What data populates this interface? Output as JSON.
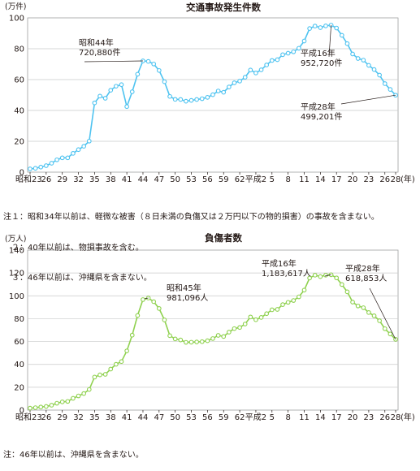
{
  "chart_data": [
    {
      "type": "line",
      "title": "交通事故発生件数",
      "ylabel": "(万件)",
      "xlabel": "(年)",
      "ylim": [
        0,
        100
      ],
      "yticks": [
        0,
        20,
        40,
        60,
        80,
        100
      ],
      "xtick_labels": [
        "昭和23",
        "26",
        "29",
        "32",
        "35",
        "38",
        "41",
        "44",
        "47",
        "50",
        "53",
        "56",
        "59",
        "62",
        "平成2",
        "5",
        "8",
        "11",
        "14",
        "17",
        "20",
        "23",
        "26",
        "28"
      ],
      "x": [
        "S23",
        "S24",
        "S25",
        "S26",
        "S27",
        "S28",
        "S29",
        "S30",
        "S31",
        "S32",
        "S33",
        "S34",
        "S35",
        "S36",
        "S37",
        "S38",
        "S39",
        "S40",
        "S41",
        "S42",
        "S43",
        "S44",
        "S45",
        "S46",
        "S47",
        "S48",
        "S49",
        "S50",
        "S51",
        "S52",
        "S53",
        "S54",
        "S55",
        "S56",
        "S57",
        "S58",
        "S59",
        "S60",
        "S61",
        "S62",
        "S63",
        "H1",
        "H2",
        "H3",
        "H4",
        "H5",
        "H6",
        "H7",
        "H8",
        "H9",
        "H10",
        "H11",
        "H12",
        "H13",
        "H14",
        "H15",
        "H16",
        "H17",
        "H18",
        "H19",
        "H20",
        "H21",
        "H22",
        "H23",
        "H24",
        "H25",
        "H26",
        "H27",
        "H28"
      ],
      "series": [
        {
          "values": [
            2.1,
            2.5,
            3.3,
            4.2,
            5.8,
            8.0,
            9.3,
            9.3,
            12.2,
            14.6,
            16.8,
            20.1,
            44.9,
            49.3,
            47.9,
            53.1,
            55.7,
            56.7,
            42.5,
            52.1,
            63.5,
            72.1,
            71.8,
            70.1,
            65.9,
            58.6,
            49.1,
            47.2,
            47.1,
            46.0,
            46.5,
            47.1,
            47.6,
            48.5,
            50.2,
            52.6,
            51.8,
            55.2,
            57.9,
            59.0,
            61.5,
            66.2,
            64.3,
            66.3,
            69.5,
            72.4,
            72.9,
            76.1,
            77.1,
            78.0,
            80.3,
            85.0,
            93.1,
            94.7,
            93.7,
            94.8,
            95.3,
            93.4,
            88.7,
            83.3,
            76.6,
            73.7,
            72.6,
            69.2,
            66.5,
            62.9,
            57.4,
            53.6,
            49.9
          ],
          "color": "#4fc3f0"
        }
      ],
      "annotations": [
        {
          "label": "昭和44年",
          "value": "720,880件"
        },
        {
          "label": "平成16年",
          "value": "952,720件"
        },
        {
          "label": "平成28年",
          "value": "499,201件"
        }
      ]
    },
    {
      "type": "line",
      "title": "負傷者数",
      "ylabel": "(万人)",
      "xlabel": "(年)",
      "ylim": [
        0,
        140
      ],
      "yticks": [
        0,
        20,
        40,
        60,
        80,
        100,
        120,
        140
      ],
      "xtick_labels": [
        "昭和23",
        "26",
        "29",
        "32",
        "35",
        "38",
        "41",
        "44",
        "47",
        "50",
        "53",
        "56",
        "59",
        "62",
        "平成2",
        "5",
        "8",
        "11",
        "14",
        "17",
        "20",
        "23",
        "26",
        "28"
      ],
      "x": [
        "S23",
        "S24",
        "S25",
        "S26",
        "S27",
        "S28",
        "S29",
        "S30",
        "S31",
        "S32",
        "S33",
        "S34",
        "S35",
        "S36",
        "S37",
        "S38",
        "S39",
        "S40",
        "S41",
        "S42",
        "S43",
        "S44",
        "S45",
        "S46",
        "S47",
        "S48",
        "S49",
        "S50",
        "S51",
        "S52",
        "S53",
        "S54",
        "S55",
        "S56",
        "S57",
        "S58",
        "S59",
        "S60",
        "S61",
        "S62",
        "S63",
        "H1",
        "H2",
        "H3",
        "H4",
        "H5",
        "H6",
        "H7",
        "H8",
        "H9",
        "H10",
        "H11",
        "H12",
        "H13",
        "H14",
        "H15",
        "H16",
        "H17",
        "H18",
        "H19",
        "H20",
        "H21",
        "H22",
        "H23",
        "H24",
        "H25",
        "H26",
        "H27",
        "H28"
      ],
      "series": [
        {
          "values": [
            1.7,
            2.1,
            2.7,
            3.2,
            4.3,
            6.0,
            7.2,
            7.6,
            10.3,
            12.4,
            14.5,
            18.0,
            28.9,
            30.8,
            31.3,
            35.9,
            40.1,
            42.5,
            51.8,
            65.6,
            82.8,
            96.7,
            98.1,
            94.9,
            88.9,
            78.9,
            65.1,
            62.3,
            61.4,
            59.3,
            59.4,
            59.6,
            59.9,
            60.7,
            62.6,
            65.4,
            64.4,
            68.2,
            71.3,
            72.3,
            75.3,
            81.5,
            79.1,
            81.1,
            84.4,
            87.8,
            88.1,
            92.3,
            94.3,
            95.9,
            99.1,
            105.0,
            115.6,
            118.1,
            116.8,
            118.1,
            118.4,
            115.7,
            109.9,
            103.5,
            94.5,
            91.1,
            89.6,
            85.4,
            82.5,
            78.2,
            71.2,
            66.6,
            61.9
          ],
          "color": "#8fd14f"
        }
      ],
      "annotations": [
        {
          "label": "昭和45年",
          "value": "981,096人"
        },
        {
          "label": "平成16年",
          "value": "1,183,617人"
        },
        {
          "label": "平成28年",
          "value": "618,853人"
        }
      ]
    }
  ],
  "notes1": [
    "注１：昭和34年以前は、軽微な被害（８日未満の負傷又は２万円以下の物的損害）の事故を含まない。",
    "　２：40年以前は、物損事故を含む。",
    "　３：46年以前は、沖縄県を含まない。"
  ],
  "notes2": [
    "注：46年以前は、沖縄県を含まない。"
  ]
}
